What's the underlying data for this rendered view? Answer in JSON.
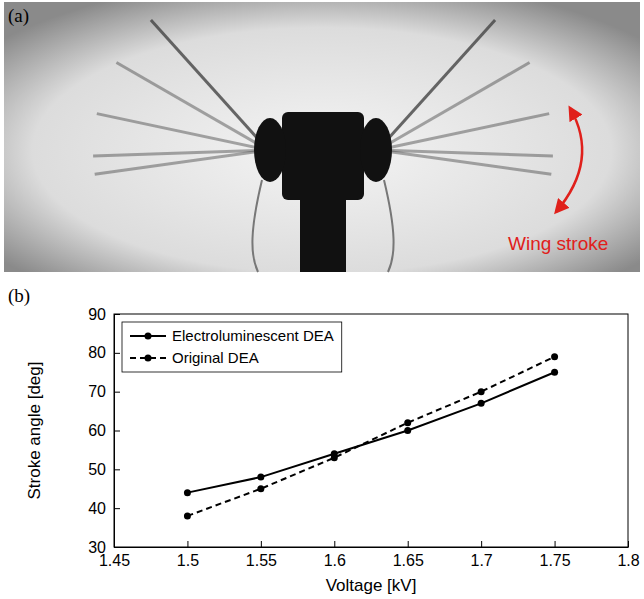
{
  "photo": {
    "panel_label": "(a)",
    "annotation": "Wing stroke"
  },
  "chart_data": {
    "type": "line",
    "panel_label": "(b)",
    "x_label": "Voltage [kV]",
    "y_label": "Stroke angle [deg]",
    "x": [
      1.5,
      1.55,
      1.6,
      1.65,
      1.7,
      1.75
    ],
    "series": [
      {
        "name": "Electroluminescent DEA",
        "color": "#000000",
        "marker": "circle",
        "line_style": "solid",
        "values": [
          44,
          48,
          54,
          60,
          67,
          75
        ]
      },
      {
        "name": "Original DEA",
        "color": "#000000",
        "marker": "circle",
        "line_style": "dashed",
        "values": [
          38,
          45,
          53,
          62,
          70,
          79
        ]
      }
    ],
    "xlim": [
      1.45,
      1.8
    ],
    "xticks": [
      1.45,
      1.5,
      1.55,
      1.6,
      1.65,
      1.7,
      1.75,
      1.8
    ],
    "ylim": [
      30,
      90
    ],
    "yticks": [
      30,
      40,
      50,
      60,
      70,
      80,
      90
    ],
    "grid": false,
    "legend": "upper left"
  }
}
